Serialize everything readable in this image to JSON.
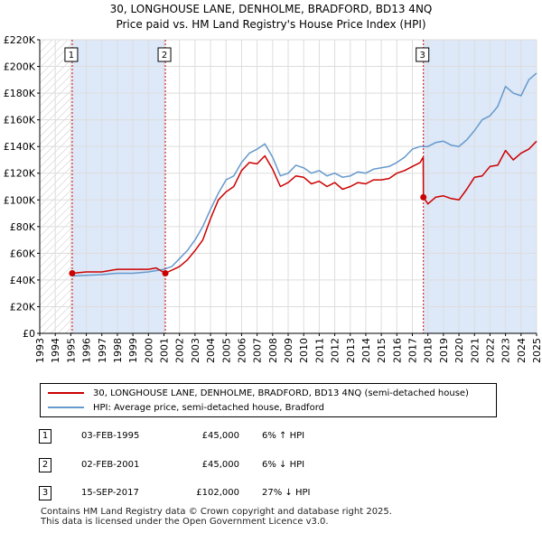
{
  "title_line1": "30, LONGHOUSE LANE, DENHOLME, BRADFORD, BD13 4NQ",
  "title_line2": "Price paid vs. HM Land Registry's House Price Index (HPI)",
  "legend": {
    "property_label": "30, LONGHOUSE LANE, DENHOLME, BRADFORD, BD13 4NQ (semi-detached house)",
    "hpi_label": "HPI: Average price, semi-detached house, Bradford"
  },
  "colors": {
    "property": "#cc0000",
    "hpi": "#6699cc",
    "shade": "#dde8f8"
  },
  "sales": [
    {
      "num": "1",
      "date": "03-FEB-1995",
      "price": "£45,000",
      "hpi": "6% ↑ HPI"
    },
    {
      "num": "2",
      "date": "02-FEB-2001",
      "price": "£45,000",
      "hpi": "6% ↓ HPI"
    },
    {
      "num": "3",
      "date": "15-SEP-2017",
      "price": "£102,000",
      "hpi": "27% ↓ HPI"
    }
  ],
  "footer_line1": "Contains HM Land Registry data © Crown copyright and database right 2025.",
  "footer_line2": "This data is licensed under the Open Government Licence v3.0.",
  "chart_data": {
    "type": "line",
    "title": "30, LONGHOUSE LANE, DENHOLME, BRADFORD, BD13 4NQ — Price paid vs. HM Land Registry's House Price Index (HPI)",
    "xlabel": "",
    "ylabel": "",
    "xlim": [
      1993,
      2025
    ],
    "ylim": [
      0,
      220000
    ],
    "x_ticks": [
      1993,
      1994,
      1995,
      1996,
      1997,
      1998,
      1999,
      2000,
      2001,
      2002,
      2003,
      2004,
      2005,
      2006,
      2007,
      2008,
      2009,
      2010,
      2011,
      2012,
      2013,
      2014,
      2015,
      2016,
      2017,
      2018,
      2019,
      2020,
      2021,
      2022,
      2023,
      2024,
      2025
    ],
    "y_ticks": [
      0,
      20000,
      40000,
      60000,
      80000,
      100000,
      120000,
      140000,
      160000,
      180000,
      200000,
      220000
    ],
    "y_tick_labels": [
      "£0",
      "£20K",
      "£40K",
      "£60K",
      "£80K",
      "£100K",
      "£120K",
      "£140K",
      "£160K",
      "£180K",
      "£200K",
      "£220K"
    ],
    "grid": true,
    "sale_markers": [
      {
        "label": "1",
        "x": 1995.09,
        "y": 45000
      },
      {
        "label": "2",
        "x": 2001.09,
        "y": 45000
      },
      {
        "label": "3",
        "x": 2017.71,
        "y": 102000
      }
    ],
    "series": [
      {
        "name": "30, LONGHOUSE LANE, DENHOLME, BRADFORD, BD13 4NQ (semi-detached house)",
        "color": "#cc0000",
        "x": [
          1995.09,
          1996,
          1997,
          1998,
          1999,
          2000,
          2000.5,
          2001.09,
          2002,
          2002.5,
          2003,
          2003.5,
          2004,
          2004.5,
          2005,
          2005.5,
          2006,
          2006.5,
          2007,
          2007.5,
          2008,
          2008.5,
          2009,
          2009.5,
          2010,
          2010.5,
          2011,
          2011.5,
          2012,
          2012.5,
          2013,
          2013.5,
          2014,
          2014.5,
          2015,
          2015.5,
          2016,
          2016.5,
          2017,
          2017.5,
          2017.7,
          2017.71,
          2018,
          2018.5,
          2019,
          2019.5,
          2020,
          2020.5,
          2021,
          2021.5,
          2022,
          2022.5,
          2023,
          2023.5,
          2024,
          2024.5,
          2025
        ],
        "values": [
          45000,
          46000,
          46000,
          48000,
          48000,
          48000,
          49000,
          45000,
          50000,
          55000,
          62000,
          70000,
          86000,
          100000,
          106000,
          110000,
          122000,
          128000,
          127000,
          133000,
          123000,
          110000,
          113000,
          118000,
          117000,
          112000,
          114000,
          110000,
          113000,
          108000,
          110000,
          113000,
          112000,
          115000,
          115000,
          116000,
          120000,
          122000,
          125000,
          128000,
          132000,
          102000,
          97000,
          102000,
          103000,
          101000,
          100000,
          108000,
          117000,
          118000,
          125000,
          126000,
          137000,
          130000,
          135000,
          138000,
          144000
        ]
      },
      {
        "name": "HPI: Average price, semi-detached house, Bradford",
        "color": "#6699cc",
        "x": [
          1995.09,
          1996,
          1997,
          1998,
          1999,
          2000,
          2001,
          2001.5,
          2002,
          2002.5,
          2003,
          2003.5,
          2004,
          2004.5,
          2005,
          2005.5,
          2006,
          2006.5,
          2007,
          2007.5,
          2008,
          2008.5,
          2009,
          2009.5,
          2010,
          2010.5,
          2011,
          2011.5,
          2012,
          2012.5,
          2013,
          2013.5,
          2014,
          2014.5,
          2015,
          2015.5,
          2016,
          2016.5,
          2017,
          2017.5,
          2018,
          2018.5,
          2019,
          2019.5,
          2020,
          2020.5,
          2021,
          2021.5,
          2022,
          2022.5,
          2023,
          2023.5,
          2024,
          2024.5,
          2025
        ],
        "values": [
          43000,
          43500,
          44000,
          45000,
          45000,
          46000,
          48000,
          50000,
          56000,
          62000,
          70000,
          80000,
          93000,
          105000,
          115000,
          118000,
          128000,
          135000,
          138000,
          142000,
          132000,
          118000,
          120000,
          126000,
          124000,
          120000,
          122000,
          118000,
          120000,
          117000,
          118000,
          121000,
          120000,
          123000,
          124000,
          125000,
          128000,
          132000,
          138000,
          140000,
          140000,
          143000,
          144000,
          141000,
          140000,
          145000,
          152000,
          160000,
          163000,
          170000,
          185000,
          180000,
          178000,
          190000,
          195000
        ]
      }
    ]
  }
}
